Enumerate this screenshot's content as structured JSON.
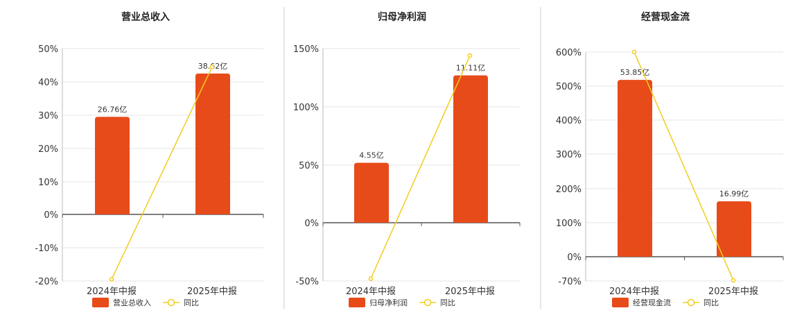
{
  "colors": {
    "bar": "#E84B1A",
    "line": "#F2CD1B",
    "grid": "#E6E6E6",
    "axis": "#555555",
    "divider": "#CCCCCC"
  },
  "chart_data": [
    {
      "type": "bar",
      "title": "营业总收入",
      "categories": [
        "2024年中报",
        "2025年中报"
      ],
      "series": [
        {
          "name": "营业总收入",
          "type": "bar",
          "values": [
            29.5,
            42.5
          ],
          "labels": [
            "26.76亿",
            "38.62亿"
          ]
        },
        {
          "name": "同比",
          "type": "line",
          "values": [
            -19.5,
            44.5
          ]
        }
      ],
      "yticks": [
        "50%",
        "40%",
        "30%",
        "20%",
        "10%",
        "0%",
        "-10%",
        "-20%"
      ],
      "ylim": [
        -20,
        50
      ],
      "legend_position": "bottom",
      "grid": true
    },
    {
      "type": "bar",
      "title": "归母净利润",
      "categories": [
        "2024年中报",
        "2025年中报"
      ],
      "series": [
        {
          "name": "归母净利润",
          "type": "bar",
          "values": [
            52,
            127
          ],
          "labels": [
            "4.55亿",
            "11.11亿"
          ]
        },
        {
          "name": "同比",
          "type": "line",
          "values": [
            -48,
            144
          ]
        }
      ],
      "yticks": [
        "150%",
        "100%",
        "50%",
        "0%",
        "-50%"
      ],
      "ylim": [
        -50,
        150
      ],
      "legend_position": "bottom",
      "grid": true
    },
    {
      "type": "bar",
      "title": "经营现金流",
      "categories": [
        "2024年中报",
        "2025年中报"
      ],
      "series": [
        {
          "name": "经营现金流",
          "type": "bar",
          "values": [
            518,
            163
          ],
          "labels": [
            "53.85亿",
            "16.99亿"
          ]
        },
        {
          "name": "同比",
          "type": "line",
          "values": [
            602,
            -68
          ]
        }
      ],
      "yticks": [
        "600%",
        "500%",
        "400%",
        "300%",
        "200%",
        "100%",
        "0%",
        "-70%"
      ],
      "ylim": [
        -70,
        600
      ],
      "legend_position": "bottom",
      "grid": true
    }
  ]
}
